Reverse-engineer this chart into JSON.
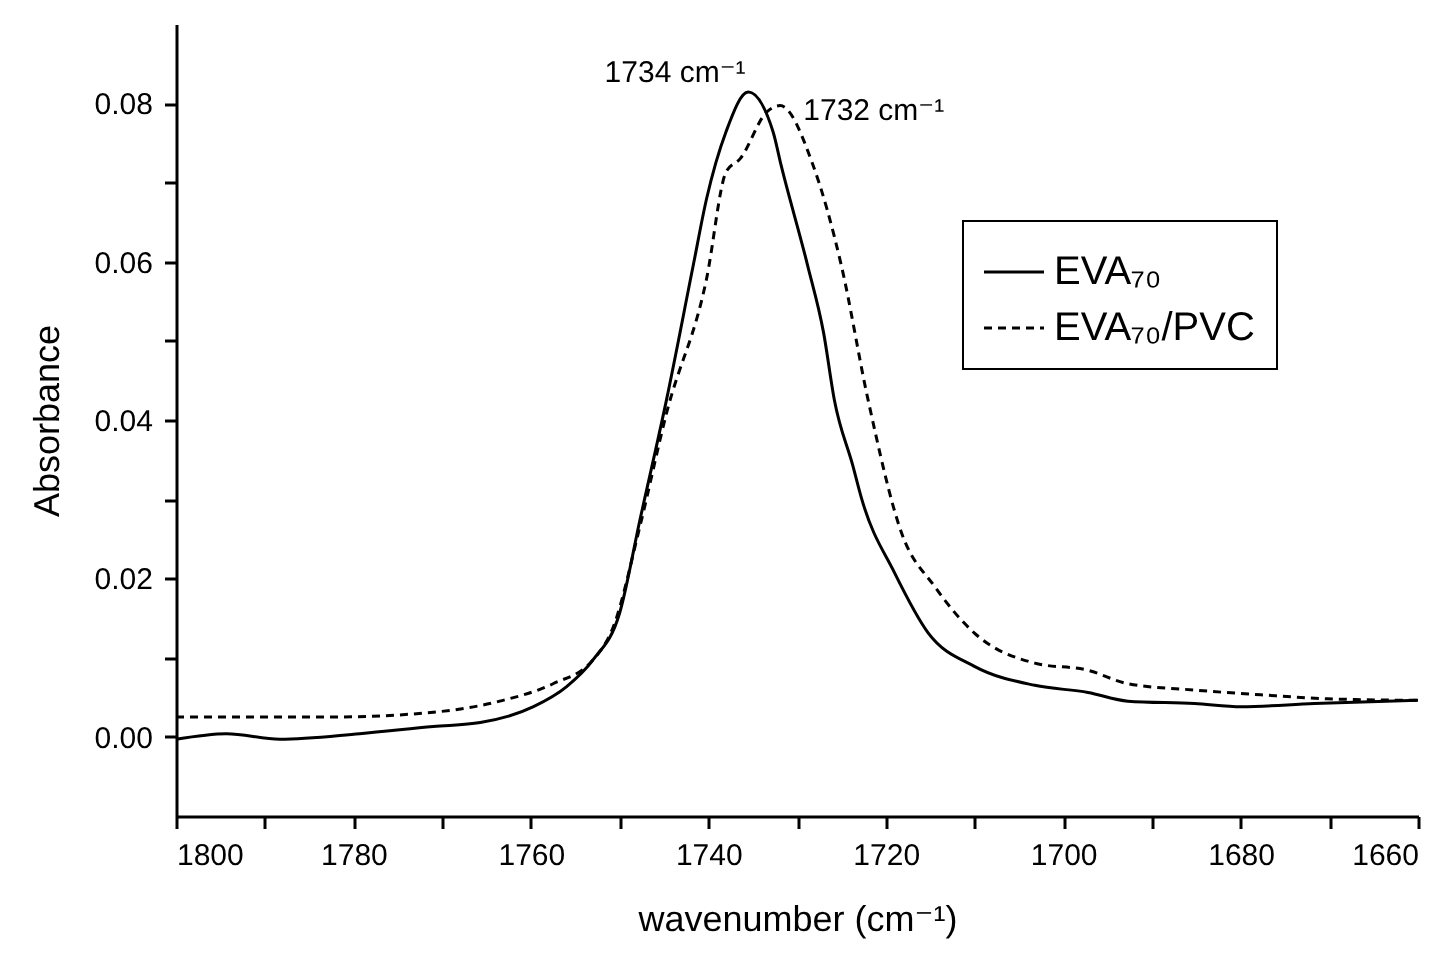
{
  "chart_data": {
    "type": "line",
    "xlabel": "wavenumber (cm⁻¹)",
    "ylabel": "Absorbance",
    "xlim": [
      1800,
      1660
    ],
    "xticks": [
      1800,
      {
        "value": 1790,
        "label": null
      },
      1780,
      {
        "value": 1770,
        "label": null
      },
      1760,
      {
        "value": 1750,
        "label": null
      },
      1740,
      {
        "value": 1730,
        "label": null
      },
      1720,
      {
        "value": 1710,
        "label": null
      },
      1700,
      {
        "value": 1690,
        "label": null
      },
      1680,
      {
        "value": 1670,
        "label": null
      },
      1660
    ],
    "ylim": [
      -0.01,
      0.09
    ],
    "yticks": [
      {
        "value": 0,
        "label": "0.00"
      },
      {
        "value": 0.01,
        "label": null
      },
      {
        "value": 0.02,
        "label": "0.02"
      },
      {
        "value": 0.03,
        "label": null
      },
      {
        "value": 0.04,
        "label": "0.04"
      },
      {
        "value": 0.05,
        "label": null
      },
      {
        "value": 0.06,
        "label": "0.06"
      },
      {
        "value": 0.07,
        "label": null
      },
      {
        "value": 0.08,
        "label": "0.08"
      }
    ],
    "grid": false,
    "legend": "top right",
    "marker": "none",
    "annotations": [
      {
        "text": "1734 cm⁻¹",
        "x": 1734,
        "y": 0.0814
      },
      {
        "text": "1732 cm⁻¹",
        "x": 1732,
        "y": 0.0797
      }
    ],
    "series": [
      {
        "name": "EVA₇₀",
        "color": "#000000",
        "line_style": "solid",
        "x": [
          1800,
          1794.3,
          1788.3,
          1779.3,
          1771.0,
          1765.7,
          1759.7,
          1756.0,
          1753.0,
          1750.0,
          1747.7,
          1744.7,
          1741.7,
          1740.2,
          1738.0,
          1735.5,
          1732.7,
          1731.8,
          1728.8,
          1727.0,
          1725.8,
          1723.7,
          1722.7,
          1719.0,
          1715.2,
          1710.0,
          1703.2,
          1697.2,
          1692.7,
          1685.2,
          1679.9,
          1671.7,
          1660
        ],
        "values": [
          -0.0003,
          0.0004,
          -0.0003,
          0.0004,
          0.0013,
          0.0018,
          0.0038,
          0.0063,
          0.0097,
          0.0156,
          0.0274,
          0.0426,
          0.0595,
          0.0679,
          0.0764,
          0.0814,
          0.0764,
          0.0722,
          0.0595,
          0.051,
          0.0426,
          0.0342,
          0.03,
          0.0207,
          0.0131,
          0.0089,
          0.0065,
          0.0056,
          0.0045,
          0.0042,
          0.0038,
          0.0042,
          0.0046
        ]
      },
      {
        "name": "EVA₇₀/PVC",
        "color": "#000000",
        "line_style": "dashed",
        "x": [
          1800,
          1782.3,
          1771.0,
          1763.5,
          1757.5,
          1753.0,
          1750.7,
          1747.7,
          1744.7,
          1740.2,
          1738.0,
          1736.4,
          1733.4,
          1731.9,
          1728.2,
          1725.0,
          1722.0,
          1718.2,
          1714.5,
          1710.0,
          1703.2,
          1697.2,
          1692.7,
          1685.2,
          1677.7,
          1670.2,
          1660
        ],
        "values": [
          0.0025,
          0.0025,
          0.0031,
          0.0045,
          0.0067,
          0.0097,
          0.0139,
          0.0266,
          0.0409,
          0.0578,
          0.0713,
          0.073,
          0.0789,
          0.0797,
          0.0722,
          0.0595,
          0.0426,
          0.0257,
          0.019,
          0.0131,
          0.0093,
          0.0084,
          0.0067,
          0.0059,
          0.0053,
          0.0048,
          0.0046
        ]
      }
    ]
  }
}
